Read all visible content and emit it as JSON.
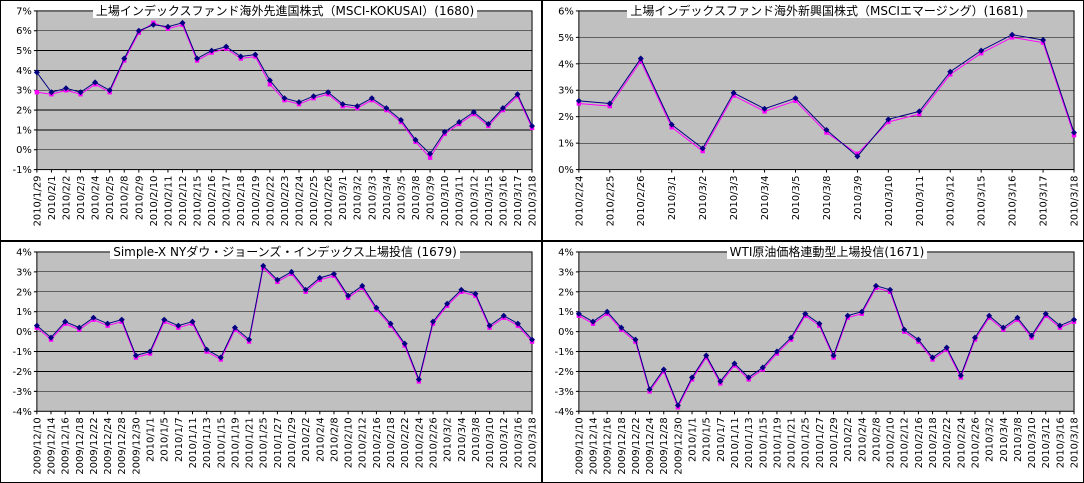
{
  "page": {
    "background": "#FFFFFF",
    "layout": "2x2-grid-of-excel-style-charts"
  },
  "colors": {
    "plot_background": "#C0C0C0",
    "gridline": "#000000",
    "series_navy": "#000080",
    "series_magenta": "#FF00FF"
  },
  "chart_data": [
    {
      "id": "fund-1680",
      "type": "line",
      "title": "上場インデックスファンド海外先進国株式（MSCI-KOKUSAI）(1680)",
      "ylim": [
        -1,
        7
      ],
      "y_tick_labels": [
        "7%",
        "6%",
        "5%",
        "4%",
        "3%",
        "2%",
        "1%",
        "0%",
        "-1%"
      ],
      "grid": true,
      "legend": "none",
      "plot_bg": "#C0C0C0",
      "categories": [
        "2010/1/29",
        "2010/2/1",
        "2010/2/2",
        "2010/2/3",
        "2010/2/4",
        "2010/2/5",
        "2010/2/8",
        "2010/2/9",
        "2010/2/10",
        "2010/2/11",
        "2010/2/12",
        "2010/2/15",
        "2010/2/16",
        "2010/2/17",
        "2010/2/18",
        "2010/2/19",
        "2010/2/22",
        "2010/2/23",
        "2010/2/24",
        "2010/2/25",
        "2010/2/26",
        "2010/3/1",
        "2010/3/2",
        "2010/3/3",
        "2010/3/4",
        "2010/3/5",
        "2010/3/8",
        "2010/3/9",
        "2010/3/10",
        "2010/3/11",
        "2010/3/12",
        "2010/3/15",
        "2010/3/16",
        "2010/3/17",
        "2010/3/18"
      ],
      "series": [
        {
          "name": "series-navy-diamond",
          "color": "#000080",
          "marker": "diamond",
          "values": [
            3.9,
            2.9,
            3.1,
            2.9,
            3.4,
            3.0,
            4.6,
            6.0,
            6.3,
            6.2,
            6.4,
            4.6,
            5.0,
            5.2,
            4.7,
            4.8,
            3.5,
            2.6,
            2.4,
            2.7,
            2.9,
            2.3,
            2.2,
            2.6,
            2.1,
            1.5,
            0.5,
            -0.2,
            0.9,
            1.4,
            1.9,
            1.3,
            2.1,
            2.8,
            1.2
          ]
        },
        {
          "name": "series-magenta-square",
          "color": "#FF00FF",
          "marker": "square",
          "values": [
            2.9,
            2.8,
            3.0,
            2.8,
            3.3,
            2.9,
            4.5,
            5.9,
            6.4,
            6.1,
            6.3,
            4.5,
            4.9,
            5.1,
            4.6,
            4.7,
            3.3,
            2.5,
            2.3,
            2.6,
            2.8,
            2.2,
            2.1,
            2.5,
            2.0,
            1.4,
            0.4,
            -0.4,
            0.8,
            1.3,
            1.8,
            1.2,
            2.0,
            2.7,
            1.1
          ]
        }
      ]
    },
    {
      "id": "fund-1681",
      "type": "line",
      "title": "上場インデックスファンド海外新興国株式（MSCIエマージング）(1681)",
      "ylim": [
        0,
        6
      ],
      "y_tick_labels": [
        "6%",
        "5%",
        "4%",
        "3%",
        "2%",
        "1%",
        "0%"
      ],
      "grid": true,
      "legend": "none",
      "plot_bg": "#C0C0C0",
      "categories": [
        "2010/2/24",
        "2010/2/25",
        "2010/2/26",
        "2010/3/1",
        "2010/3/2",
        "2010/3/3",
        "2010/3/4",
        "2010/3/5",
        "2010/3/8",
        "2010/3/9",
        "2010/3/10",
        "2010/3/11",
        "2010/3/12",
        "2010/3/15",
        "2010/3/16",
        "2010/3/17",
        "2010/3/18"
      ],
      "series": [
        {
          "name": "series-navy-diamond",
          "color": "#000080",
          "marker": "diamond",
          "values": [
            2.6,
            2.5,
            4.2,
            1.7,
            0.8,
            2.9,
            2.3,
            2.7,
            1.5,
            0.5,
            1.9,
            2.2,
            3.7,
            4.5,
            5.1,
            4.9,
            1.4
          ]
        },
        {
          "name": "series-magenta-square",
          "color": "#FF00FF",
          "marker": "square",
          "values": [
            2.5,
            2.4,
            4.1,
            1.6,
            0.7,
            2.8,
            2.2,
            2.6,
            1.4,
            0.6,
            1.8,
            2.1,
            3.6,
            4.4,
            5.0,
            4.8,
            1.3
          ]
        }
      ]
    },
    {
      "id": "fund-1679",
      "type": "line",
      "title": "Simple-X NYダウ・ジョーンズ・インデックス上場投信 (1679)",
      "ylim": [
        -4,
        4
      ],
      "y_tick_labels": [
        "4%",
        "3%",
        "2%",
        "1%",
        "0%",
        "-1%",
        "-2%",
        "-3%",
        "-4%"
      ],
      "grid": true,
      "legend": "none",
      "plot_bg": "#C0C0C0",
      "categories": [
        "2009/12/10",
        "2009/12/14",
        "2009/12/16",
        "2009/12/18",
        "2009/12/22",
        "2009/12/24",
        "2009/12/28",
        "2009/12/30",
        "2010/1/1",
        "2010/1/5",
        "2010/1/7",
        "2010/1/11",
        "2010/1/13",
        "2010/1/15",
        "2010/1/19",
        "2010/1/21",
        "2010/1/25",
        "2010/1/27",
        "2010/1/29",
        "2010/2/2",
        "2010/2/4",
        "2010/2/8",
        "2010/2/10",
        "2010/2/12",
        "2010/2/16",
        "2010/2/18",
        "2010/2/22",
        "2010/2/24",
        "2010/2/26",
        "2010/3/2",
        "2010/3/4",
        "2010/3/8",
        "2010/3/10",
        "2010/3/12",
        "2010/3/16",
        "2010/3/18"
      ],
      "series": [
        {
          "name": "series-navy-diamond",
          "color": "#000080",
          "marker": "diamond",
          "values": [
            0.3,
            -0.3,
            0.5,
            0.2,
            0.7,
            0.4,
            0.6,
            -1.2,
            -1.0,
            0.6,
            0.3,
            0.5,
            -0.9,
            -1.3,
            0.2,
            -0.4,
            3.3,
            2.6,
            3.0,
            2.1,
            2.7,
            2.9,
            1.8,
            2.3,
            1.2,
            0.4,
            -0.6,
            -2.4,
            0.5,
            1.4,
            2.1,
            1.9,
            0.3,
            0.8,
            0.4,
            -0.4
          ]
        },
        {
          "name": "series-magenta-square",
          "color": "#FF00FF",
          "marker": "square",
          "values": [
            0.2,
            -0.4,
            0.4,
            0.1,
            0.6,
            0.3,
            0.5,
            -1.3,
            -1.1,
            0.5,
            0.2,
            0.4,
            -1.0,
            -1.4,
            0.1,
            -0.5,
            3.2,
            2.5,
            2.9,
            2.0,
            2.6,
            2.8,
            1.7,
            2.2,
            1.1,
            0.3,
            -0.7,
            -2.5,
            0.4,
            1.3,
            2.0,
            1.8,
            0.2,
            0.7,
            0.3,
            -0.5
          ]
        }
      ]
    },
    {
      "id": "fund-1671",
      "type": "line",
      "title": "WTI原油価格連動型上場投信(1671)",
      "ylim": [
        -4,
        4
      ],
      "y_tick_labels": [
        "4%",
        "3%",
        "2%",
        "1%",
        "0%",
        "-1%",
        "-2%",
        "-3%",
        "-4%"
      ],
      "grid": true,
      "legend": "none",
      "plot_bg": "#C0C0C0",
      "categories": [
        "2009/12/10",
        "2009/12/14",
        "2009/12/16",
        "2009/12/18",
        "2009/12/22",
        "2009/12/24",
        "2009/12/28",
        "2009/12/30",
        "2010/1/1",
        "2010/1/5",
        "2010/1/7",
        "2010/1/11",
        "2010/1/13",
        "2010/1/15",
        "2010/1/19",
        "2010/1/21",
        "2010/1/25",
        "2010/1/27",
        "2010/1/29",
        "2010/2/2",
        "2010/2/4",
        "2010/2/8",
        "2010/2/10",
        "2010/2/12",
        "2010/2/16",
        "2010/2/18",
        "2010/2/22",
        "2010/2/24",
        "2010/2/26",
        "2010/3/2",
        "2010/3/4",
        "2010/3/8",
        "2010/3/10",
        "2010/3/12",
        "2010/3/16",
        "2010/3/18"
      ],
      "series": [
        {
          "name": "series-navy-diamond",
          "color": "#000080",
          "marker": "diamond",
          "values": [
            0.9,
            0.5,
            1.0,
            0.2,
            -0.4,
            -2.9,
            -1.9,
            -3.7,
            -2.3,
            -1.2,
            -2.5,
            -1.6,
            -2.3,
            -1.8,
            -1.0,
            -0.3,
            0.9,
            0.4,
            -1.2,
            0.8,
            1.0,
            2.3,
            2.1,
            0.1,
            -0.4,
            -1.3,
            -0.8,
            -2.2,
            -0.3,
            0.8,
            0.2,
            0.7,
            -0.2,
            0.9,
            0.3,
            0.6
          ]
        },
        {
          "name": "series-magenta-square",
          "color": "#FF00FF",
          "marker": "square",
          "values": [
            0.8,
            0.4,
            0.9,
            0.1,
            -0.5,
            -3.0,
            -2.0,
            -3.8,
            -2.4,
            -1.3,
            -2.6,
            -1.7,
            -2.4,
            -1.9,
            -1.1,
            -0.4,
            0.8,
            0.3,
            -1.3,
            0.7,
            0.9,
            2.2,
            2.0,
            0.0,
            -0.5,
            -1.4,
            -0.9,
            -2.3,
            -0.4,
            0.7,
            0.1,
            0.6,
            -0.3,
            0.8,
            0.2,
            0.5
          ]
        }
      ]
    }
  ]
}
